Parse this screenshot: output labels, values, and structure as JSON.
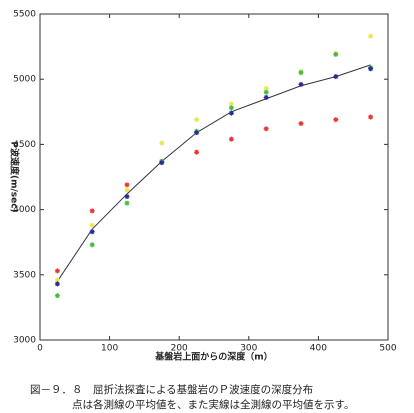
{
  "chart_data": {
    "type": "scatter",
    "x_label": "基盤岩上面からの深度（m）",
    "y_label": "P波速度(m/sec)",
    "x": [
      25,
      75,
      125,
      175,
      225,
      275,
      325,
      375,
      425,
      475
    ],
    "series": [
      {
        "color": "#ee3333",
        "values": [
          3530,
          3990,
          4190,
          4370,
          4440,
          4540,
          4620,
          4660,
          4690,
          4710
        ]
      },
      {
        "color": "#e8e850",
        "values": [
          3460,
          3880,
          4150,
          4510,
          4690,
          4810,
          4930,
          5060,
          5200,
          5330
        ]
      },
      {
        "color": "#44bb44",
        "values": [
          3340,
          3730,
          4050,
          4370,
          4600,
          4780,
          4900,
          5050,
          5190,
          5090
        ]
      },
      {
        "color": "#2a2a9a",
        "values": [
          3430,
          3830,
          4100,
          4360,
          4590,
          4740,
          4860,
          4960,
          5020,
          5080
        ]
      }
    ],
    "average_line": {
      "color": "#333344",
      "values": [
        3450,
        3850,
        4120,
        4370,
        4590,
        4750,
        4850,
        4950,
        5020,
        5110
      ]
    },
    "xlim": [
      0,
      500
    ],
    "xticks": [
      0,
      100,
      200,
      300,
      400,
      500
    ],
    "ylim": [
      3000,
      5500
    ],
    "yticks": [
      3000,
      3500,
      4000,
      4500,
      5000,
      5500
    ],
    "caption": [
      "図－９．８　屈折法探査による基盤岩のＰ波速度の深度分布",
      "点は各測線の平均値を、また実線は全測線の平均値を示す。"
    ]
  }
}
